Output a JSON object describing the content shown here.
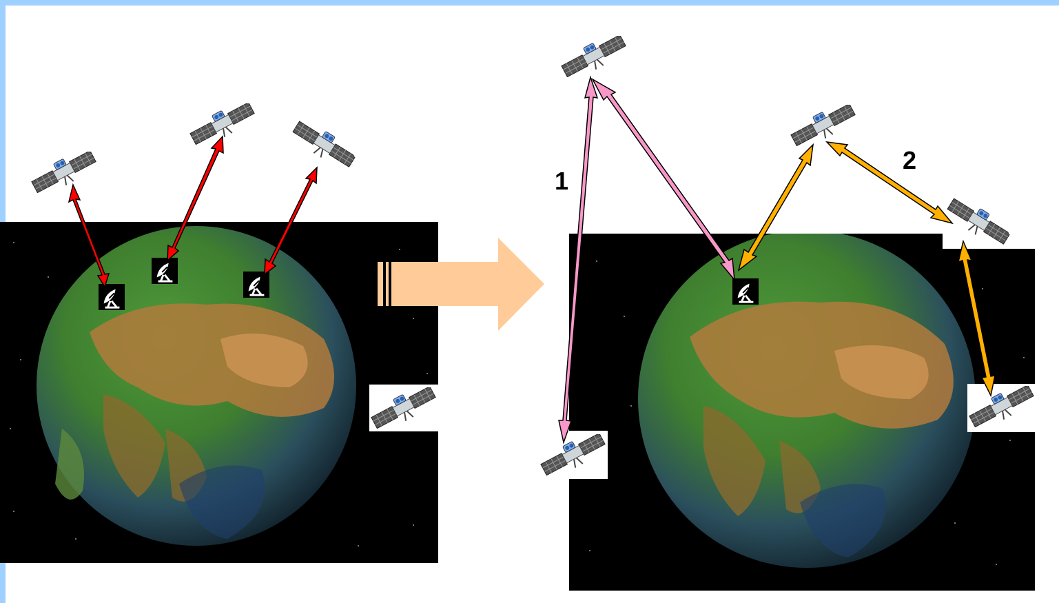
{
  "diagram": {
    "labels": {
      "path_1": "1",
      "path_2": "2"
    },
    "colors": {
      "direct_links": "#ff0000",
      "relay_path_1": "#f898c8",
      "relay_path_2": "#ffb000",
      "transition_arrow": "#ffcc99",
      "background_frame": "#9fd0ff"
    },
    "icons": [
      "satellite-icon",
      "ground-station-icon",
      "earth-globe"
    ]
  }
}
